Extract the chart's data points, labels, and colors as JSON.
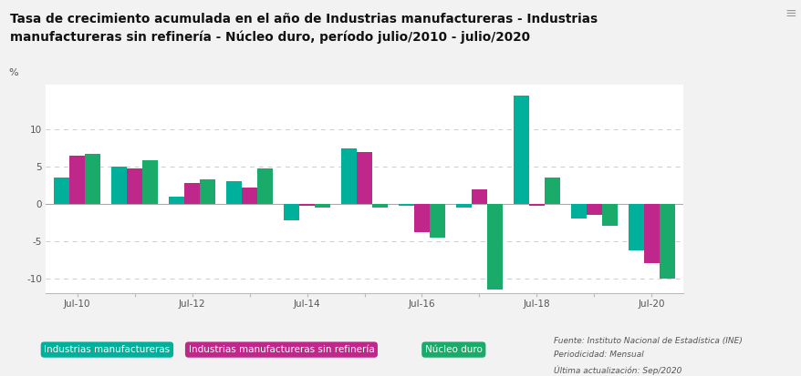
{
  "title_line1": "Tasa de crecimiento acumulada en el año de Industrias manufactureras - Industrias",
  "title_line2": "manufactureras sin refinería - Núcleo duro, período julio/2010 - julio/2020",
  "xtick_positions": [
    0,
    1,
    2,
    3,
    4,
    5,
    6,
    7,
    8,
    9,
    10
  ],
  "xtick_labels_show": [
    "Jul-10",
    "",
    "Jul-12",
    "",
    "Jul-14",
    "",
    "Jul-16",
    "",
    "Jul-18",
    "",
    "Jul-20"
  ],
  "series_ind_manuf": [
    3.5,
    5.0,
    1.0,
    3.0,
    -2.2,
    7.5,
    -0.2,
    -0.5,
    14.5,
    -2.0,
    -6.2
  ],
  "series_ind_manuf_sinref": [
    6.5,
    4.7,
    2.8,
    2.2,
    -0.2,
    7.0,
    -3.8,
    2.0,
    -0.2,
    -1.5,
    -8.0
  ],
  "series_nucleo_duro": [
    6.7,
    5.8,
    3.3,
    4.8,
    -0.5,
    -0.5,
    -4.5,
    -11.5,
    3.5,
    -3.0,
    -10.0
  ],
  "color_ind_manuf": "#00b09b",
  "color_ind_manuf_sinref": "#c0278a",
  "color_nucleo_duro": "#1aaa6a",
  "legend_ind_manuf": "Industrias manufactureras",
  "legend_ind_manuf_sinref": "Industrias manufactureras sin refinería",
  "legend_nucleo_duro": "Núcleo duro",
  "ylim_min": -12,
  "ylim_max": 16,
  "yticks": [
    -10,
    -5,
    0,
    5,
    10
  ],
  "source_line1": "Fuente: Instituto Nacional de Estadística (INE)",
  "source_line2": "Periodicidad: Mensual",
  "source_line3": "Última actualización: Sep/2020",
  "bg_color": "#f2f2f2",
  "plot_bg_color": "#ffffff",
  "bar_width": 0.27,
  "grid_color": "#cccccc"
}
